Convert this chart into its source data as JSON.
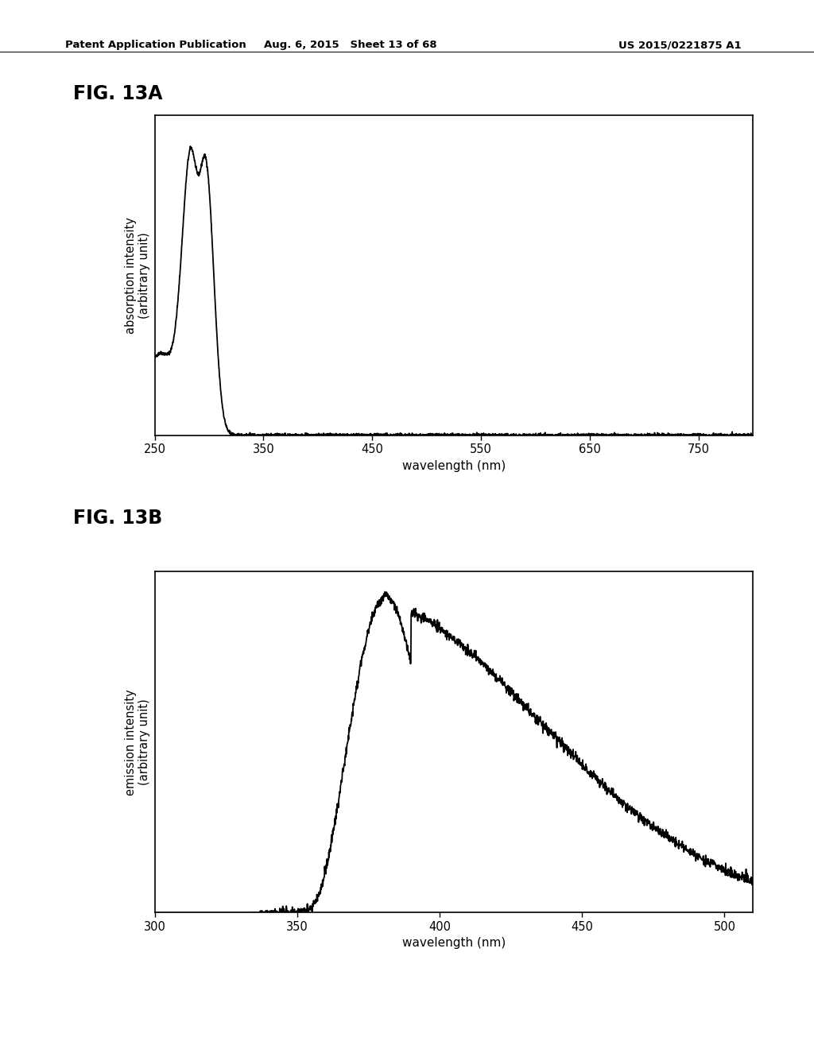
{
  "header_left": "Patent Application Publication",
  "header_mid": "Aug. 6, 2015   Sheet 13 of 68",
  "header_right": "US 2015/0221875 A1",
  "fig_a_label": "FIG. 13A",
  "fig_b_label": "FIG. 13B",
  "fig_a_ylabel": "absorption intensity\n(arbitrary unit)",
  "fig_b_ylabel": "emission intensity\n(arbitrary unit)",
  "xlabel": "wavelength (nm)",
  "fig_a_xlim": [
    250,
    800
  ],
  "fig_a_xticks": [
    250,
    350,
    450,
    550,
    650,
    750
  ],
  "fig_b_xlim": [
    300,
    510
  ],
  "fig_b_xticks": [
    300,
    350,
    400,
    450,
    500
  ],
  "background_color": "#ffffff",
  "line_color": "#000000",
  "text_color": "#000000"
}
